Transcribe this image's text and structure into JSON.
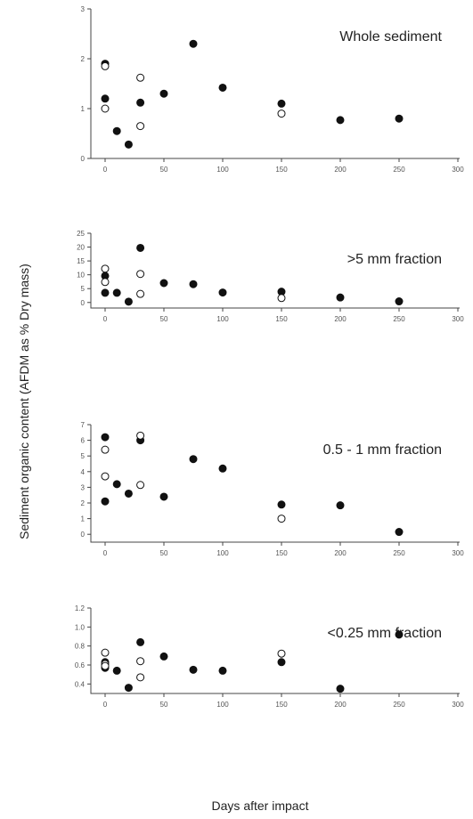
{
  "figure": {
    "ylabel": "Sediment organic content (AFDM as % Dry mass)",
    "xlabel": "Days after impact"
  },
  "chart_data": [
    {
      "type": "scatter",
      "title": "Whole sediment",
      "xlim": [
        0,
        300
      ],
      "ylim": [
        0,
        3
      ],
      "xticks": [
        0,
        50,
        100,
        150,
        200,
        250,
        300
      ],
      "yticks": [
        0,
        1,
        2,
        3
      ],
      "series": [
        {
          "marker": "filled",
          "x": [
            0,
            0,
            10,
            20,
            30,
            50,
            75,
            100,
            150,
            200,
            250
          ],
          "y": [
            1.9,
            1.2,
            0.55,
            0.28,
            1.12,
            1.3,
            2.3,
            1.42,
            1.1,
            0.77,
            0.8
          ]
        },
        {
          "marker": "open",
          "x": [
            0,
            0,
            30,
            30,
            150
          ],
          "y": [
            1.85,
            1.0,
            1.62,
            0.65,
            0.9
          ]
        }
      ]
    },
    {
      "type": "scatter",
      "title": ">5 mm fraction",
      "xlim": [
        0,
        300
      ],
      "ylim": [
        -2,
        25
      ],
      "xticks": [
        0,
        50,
        100,
        150,
        200,
        250,
        300
      ],
      "yticks": [
        0,
        5,
        10,
        15,
        20,
        25
      ],
      "series": [
        {
          "marker": "filled",
          "x": [
            0,
            0,
            10,
            20,
            30,
            50,
            75,
            100,
            150,
            200,
            250
          ],
          "y": [
            9.6,
            3.5,
            3.5,
            0.3,
            19.7,
            7.0,
            6.6,
            3.6,
            3.9,
            1.8,
            0.4
          ]
        },
        {
          "marker": "open",
          "x": [
            0,
            0,
            30,
            30,
            150
          ],
          "y": [
            12.2,
            7.4,
            10.3,
            3.1,
            1.6
          ]
        }
      ]
    },
    {
      "type": "scatter",
      "title": "0.5 - 1 mm fraction",
      "xlim": [
        0,
        300
      ],
      "ylim": [
        -0.5,
        7
      ],
      "xticks": [
        0,
        50,
        100,
        150,
        200,
        250,
        300
      ],
      "yticks": [
        0,
        1,
        2,
        3,
        4,
        5,
        6,
        7
      ],
      "series": [
        {
          "marker": "filled",
          "x": [
            0,
            0,
            10,
            20,
            30,
            50,
            75,
            100,
            150,
            200,
            250
          ],
          "y": [
            6.2,
            2.1,
            3.2,
            2.6,
            6.0,
            2.4,
            4.8,
            4.2,
            1.9,
            1.85,
            0.15
          ]
        },
        {
          "marker": "open",
          "x": [
            0,
            0,
            30,
            30,
            150
          ],
          "y": [
            5.4,
            3.7,
            6.3,
            3.15,
            1.0
          ]
        }
      ]
    },
    {
      "type": "scatter",
      "title": "<0.25 mm fraction",
      "xlim": [
        0,
        300
      ],
      "ylim": [
        0.3,
        1.2
      ],
      "xticks": [
        0,
        50,
        100,
        150,
        200,
        250,
        300
      ],
      "yticks": [
        0.4,
        0.6,
        0.8,
        1.0,
        1.2
      ],
      "ytick_labels": [
        "0.4",
        "0.6",
        "0.8",
        "1.0",
        "1.2"
      ],
      "series": [
        {
          "marker": "filled",
          "x": [
            0,
            0,
            10,
            20,
            30,
            50,
            75,
            100,
            150,
            200,
            250
          ],
          "y": [
            0.63,
            0.57,
            0.54,
            0.36,
            0.84,
            0.69,
            0.55,
            0.54,
            0.63,
            0.35,
            0.92
          ]
        },
        {
          "marker": "open",
          "x": [
            0,
            0,
            0,
            30,
            30,
            150
          ],
          "y": [
            0.73,
            0.61,
            0.59,
            0.64,
            0.47,
            0.72
          ]
        }
      ]
    }
  ]
}
